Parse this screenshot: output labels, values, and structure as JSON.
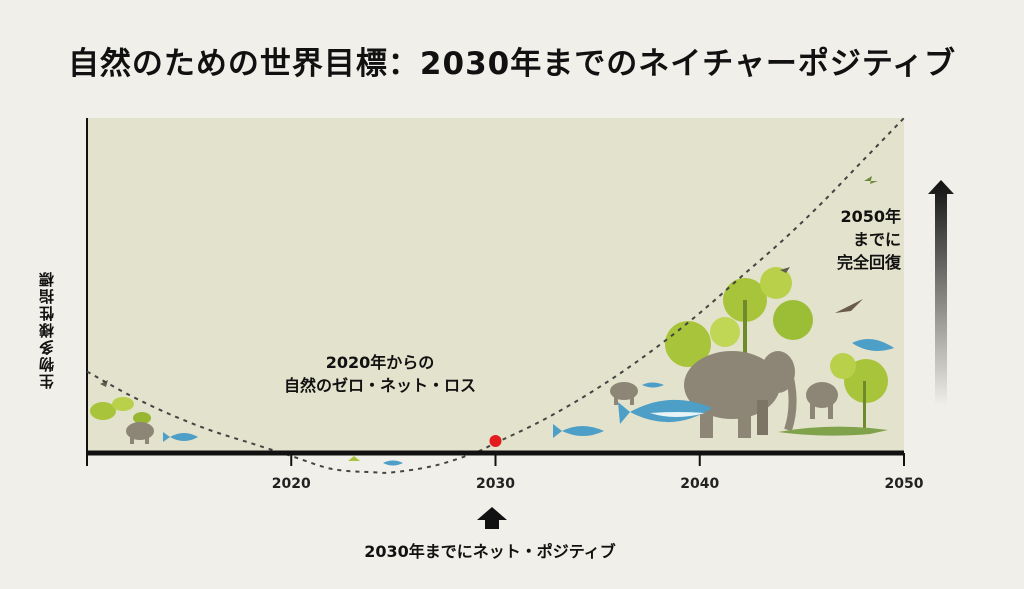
{
  "title": "自然のための世界目標：2030年までのネイチャーポジティブ",
  "chart_data": {
    "type": "line",
    "title": "自然のための世界目標：2030年までのネイチャーポジティブ",
    "ylabel": "生物多様性指標",
    "xlabel": "",
    "x_ticks": [
      2020,
      2030,
      2040,
      2050
    ],
    "xlim": [
      2010,
      2050
    ],
    "ylim": [
      -0.15,
      1.0
    ],
    "series": [
      {
        "style": "dashed",
        "x": [
          2010,
          2012,
          2014,
          2016,
          2018,
          2020,
          2022,
          2024,
          2025,
          2027,
          2029,
          2030,
          2032,
          2034,
          2036,
          2038,
          2040,
          2042,
          2044,
          2046,
          2048,
          2050
        ],
        "y": [
          0.22,
          0.15,
          0.09,
          0.04,
          0.0,
          -0.04,
          -0.08,
          -0.09,
          -0.09,
          -0.07,
          -0.03,
          0.0,
          0.06,
          0.13,
          0.21,
          0.3,
          0.4,
          0.51,
          0.62,
          0.74,
          0.87,
          1.0
        ]
      }
    ],
    "markers": [
      {
        "x": 2030,
        "y": 0.0,
        "color": "#e31d1d"
      }
    ],
    "annotations": [
      {
        "lines": [
          "2020年からの",
          "自然のゼロ・ネット・ロス"
        ]
      },
      {
        "lines": [
          "2050年",
          "までに",
          "完全回復"
        ]
      },
      {
        "lines": [
          "2030年までにネット・ポジティブ"
        ]
      }
    ]
  },
  "colors": {
    "plot_bg": "#e3e2cc",
    "axis": "#111111",
    "curve": "#444444",
    "marker": "#e31d1d",
    "foliage": "#a8c43a",
    "animal_grey": "#8d8676",
    "fish_blue": "#4d9fc7",
    "crocodile": "#7fa24b"
  },
  "icons": [
    "elephant-icon",
    "shark-icon",
    "fish-icon",
    "crocodile-icon",
    "plant-icon",
    "bird-icon",
    "up-arrow-icon",
    "gradient-arrow-icon"
  ]
}
